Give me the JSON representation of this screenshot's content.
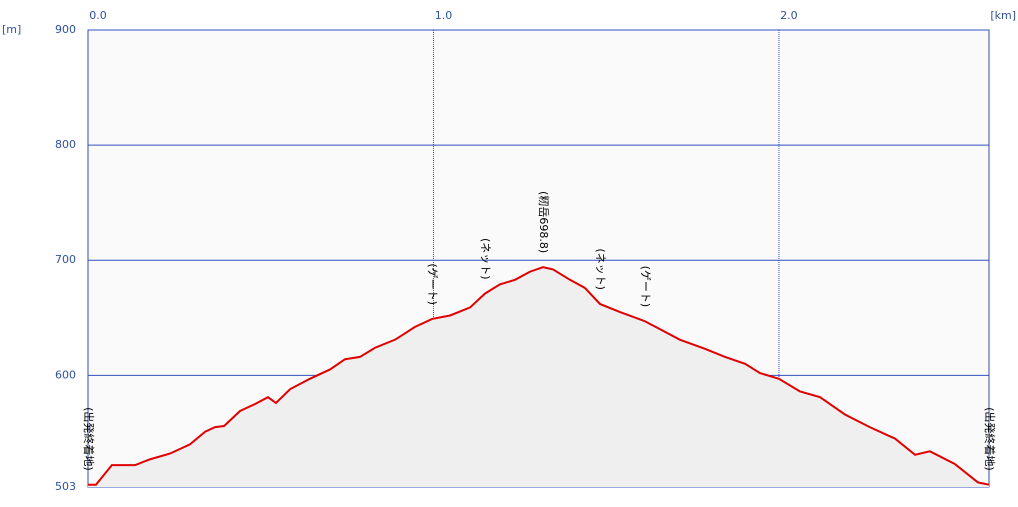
{
  "chart_data": {
    "type": "line",
    "x_unit": "[km]",
    "y_unit": "[m]",
    "xlim": [
      0,
      2.608
    ],
    "ylim": [
      503,
      900
    ],
    "xticks": [
      {
        "value": 0,
        "label": "0.0"
      },
      {
        "value": 1,
        "label": "1.0"
      },
      {
        "value": 2,
        "label": "2.0"
      }
    ],
    "yticks": [
      503,
      600,
      700,
      800,
      900
    ],
    "grid": true,
    "color": "#e00000",
    "x": [
      0,
      0.023,
      0.069,
      0.136,
      0.179,
      0.237,
      0.295,
      0.339,
      0.368,
      0.394,
      0.44,
      0.483,
      0.521,
      0.544,
      0.585,
      0.642,
      0.7,
      0.744,
      0.787,
      0.831,
      0.889,
      0.946,
      0.996,
      1.048,
      1.106,
      1.149,
      1.192,
      1.236,
      1.279,
      1.317,
      1.346,
      1.395,
      1.438,
      1.482,
      1.54,
      1.612,
      1.656,
      1.713,
      1.786,
      1.844,
      1.902,
      1.945,
      2.0,
      2.061,
      2.119,
      2.191,
      2.263,
      2.336,
      2.394,
      2.437,
      2.509,
      2.576,
      2.608
    ],
    "values": [
      505,
      505,
      522,
      522,
      527,
      532,
      540,
      551,
      555,
      556,
      569,
      575,
      581,
      576,
      588,
      597,
      605,
      614,
      616,
      624,
      631,
      642,
      649,
      652,
      659,
      671,
      679,
      683,
      690,
      694,
      692,
      683,
      676,
      662,
      655,
      647,
      640,
      631,
      623,
      616,
      610,
      602,
      597,
      586,
      581,
      566,
      555,
      545,
      531,
      534,
      523,
      507,
      505
    ],
    "annotations": [
      {
        "x": 0,
        "y": 505,
        "text": "(出発終着地)"
      },
      {
        "x": 0.996,
        "y": 649,
        "text": "(ゲート)"
      },
      {
        "x": 1.149,
        "y": 671,
        "text": "(ネット)"
      },
      {
        "x": 1.317,
        "y": 694,
        "text": "(籾岳698.8)"
      },
      {
        "x": 1.482,
        "y": 662,
        "text": "(ネット)"
      },
      {
        "x": 1.612,
        "y": 647,
        "text": "(ゲート)"
      },
      {
        "x": 2.608,
        "y": 505,
        "text": "(出発終着地)"
      }
    ]
  }
}
